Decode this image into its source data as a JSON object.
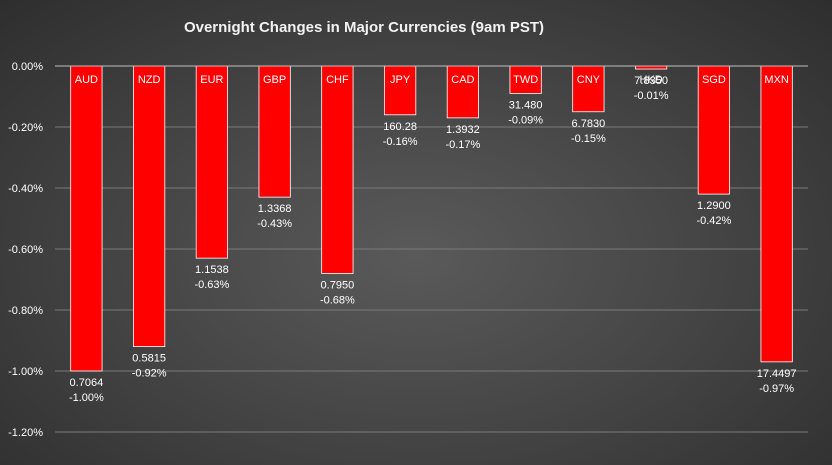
{
  "chart_data": {
    "type": "bar",
    "title": "Overnight Changes in Major Currencies (9am PST)",
    "xlabel": "",
    "ylabel": "",
    "ylim": [
      -1.2,
      0
    ],
    "yticks": [
      "0.00%",
      "-0.20%",
      "-0.40%",
      "-0.60%",
      "-0.80%",
      "-1.00%",
      "-1.20%"
    ],
    "grid": "horizontal",
    "legend": "none",
    "bar_color": "#ff0000",
    "categories": [
      "AUD",
      "NZD",
      "EUR",
      "GBP",
      "CHF",
      "JPY",
      "CAD",
      "TWD",
      "CNY",
      "HKD",
      "SGD",
      "MXN"
    ],
    "values": [
      -1.0,
      -0.92,
      -0.63,
      -0.43,
      -0.68,
      -0.16,
      -0.17,
      -0.09,
      -0.15,
      -0.01,
      -0.42,
      -0.97
    ],
    "rates": [
      "0.7064",
      "0.5815",
      "1.1538",
      "1.3368",
      "0.7950",
      "160.28",
      "1.3932",
      "31.480",
      "6.7830",
      "7.8350",
      "1.2900",
      "17.4497"
    ],
    "percent_labels": [
      "-1.00%",
      "-0.92%",
      "-0.63%",
      "-0.43%",
      "-0.68%",
      "-0.16%",
      "-0.17%",
      "-0.09%",
      "-0.15%",
      "-0.01%",
      "-0.42%",
      "-0.97%"
    ]
  }
}
